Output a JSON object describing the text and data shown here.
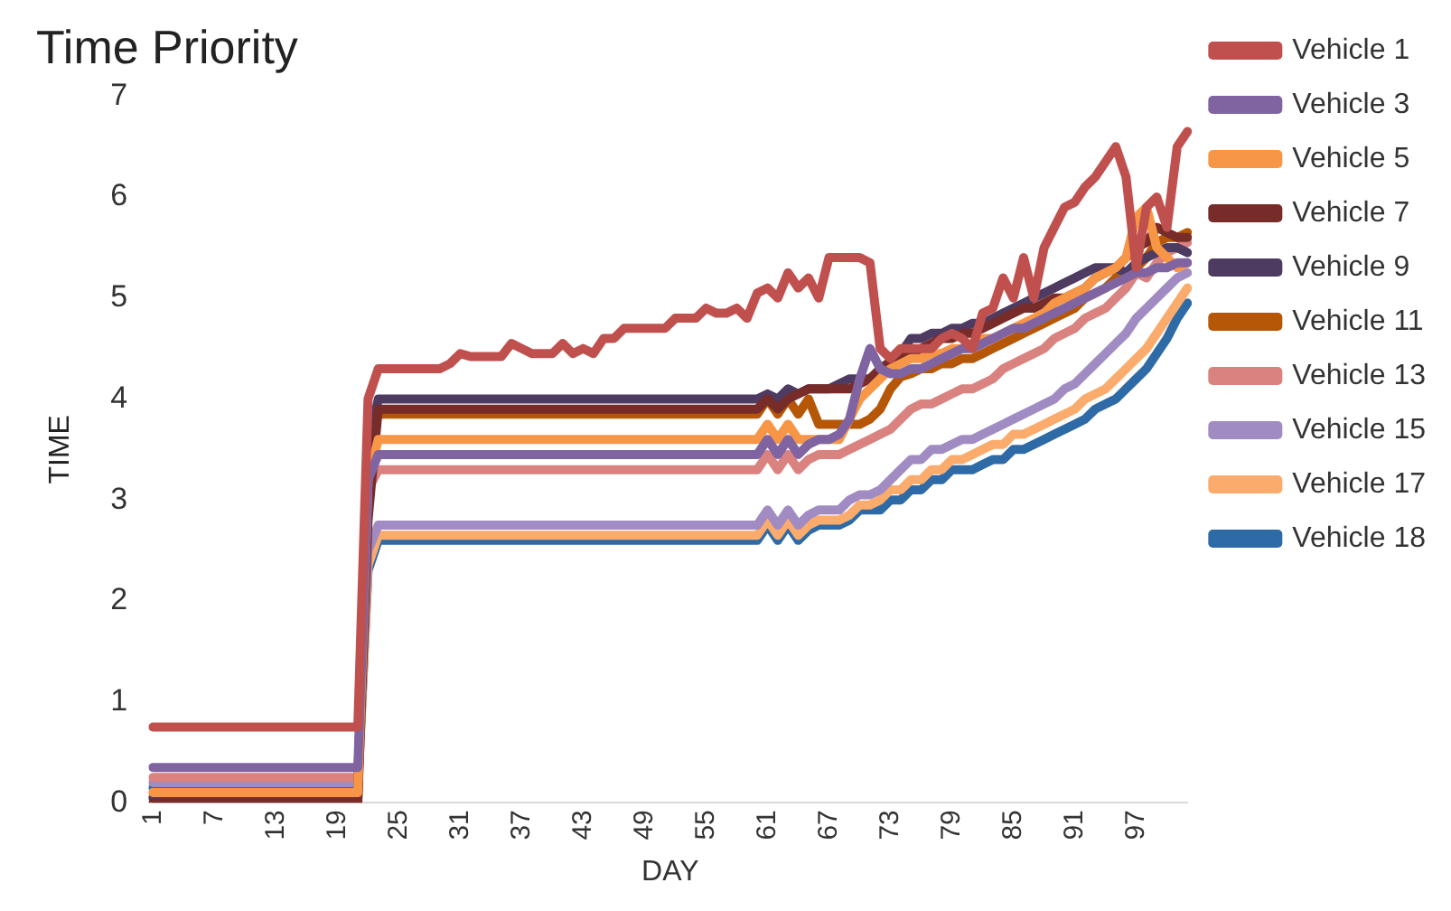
{
  "chart_data": {
    "type": "line",
    "title": "Time Priority",
    "xlabel": "DAY",
    "ylabel": "TIME",
    "ylim": [
      0,
      7
    ],
    "yticks": [
      0,
      1,
      2,
      3,
      4,
      5,
      6,
      7
    ],
    "grid": false,
    "legend": "right",
    "marker": "none",
    "line_style": "solid",
    "categories": [
      "1",
      null,
      null,
      null,
      null,
      null,
      "7",
      null,
      null,
      null,
      null,
      null,
      "13",
      null,
      null,
      null,
      null,
      null,
      "19",
      null,
      null,
      null,
      null,
      null,
      "25",
      null,
      null,
      null,
      null,
      null,
      "31",
      null,
      null,
      null,
      null,
      null,
      "37",
      null,
      null,
      null,
      null,
      null,
      "43",
      null,
      null,
      null,
      null,
      null,
      "49",
      null,
      null,
      null,
      null,
      null,
      "55",
      null,
      null,
      null,
      null,
      null,
      "61",
      null,
      null,
      null,
      null,
      null,
      "67",
      null,
      null,
      null,
      null,
      null,
      "73",
      null,
      null,
      null,
      null,
      null,
      "79",
      null,
      null,
      null,
      null,
      null,
      "85",
      null,
      null,
      null,
      null,
      null,
      "91",
      null,
      null,
      null,
      null,
      null,
      "97",
      null,
      null,
      null,
      null,
      null
    ],
    "series": [
      {
        "name": "Vehicle 1",
        "color": "#c0504d",
        "values": [
          0.75,
          0.75,
          0.75,
          0.75,
          0.75,
          0.75,
          0.75,
          0.75,
          0.75,
          0.75,
          0.75,
          0.75,
          0.75,
          0.75,
          0.75,
          0.75,
          0.75,
          0.75,
          0.75,
          0.75,
          0.75,
          4.0,
          4.3,
          4.3,
          4.3,
          4.3,
          4.3,
          4.3,
          4.3,
          4.35,
          4.45,
          4.42,
          4.42,
          4.42,
          4.42,
          4.55,
          4.5,
          4.45,
          4.45,
          4.45,
          4.55,
          4.45,
          4.5,
          4.45,
          4.6,
          4.6,
          4.7,
          4.7,
          4.7,
          4.7,
          4.7,
          4.8,
          4.8,
          4.8,
          4.9,
          4.85,
          4.85,
          4.9,
          4.8,
          5.05,
          5.1,
          5.0,
          5.25,
          5.1,
          5.2,
          5.0,
          5.4,
          5.4,
          5.4,
          5.4,
          5.35,
          4.5,
          4.4,
          4.5,
          4.5,
          4.5,
          4.5,
          4.6,
          4.65,
          4.6,
          4.5,
          4.85,
          4.9,
          5.2,
          5.0,
          5.4,
          5.0,
          5.5,
          5.7,
          5.9,
          5.95,
          6.1,
          6.2,
          6.35,
          6.5,
          6.2,
          5.3,
          5.9,
          6.0,
          5.7,
          6.5,
          6.65
        ]
      },
      {
        "name": "Vehicle 3",
        "color": "#8064a2",
        "values": [
          0.35,
          0.35,
          0.35,
          0.35,
          0.35,
          0.35,
          0.35,
          0.35,
          0.35,
          0.35,
          0.35,
          0.35,
          0.35,
          0.35,
          0.35,
          0.35,
          0.35,
          0.35,
          0.35,
          0.35,
          0.35,
          3.2,
          3.45,
          3.45,
          3.45,
          3.45,
          3.45,
          3.45,
          3.45,
          3.45,
          3.45,
          3.45,
          3.45,
          3.45,
          3.45,
          3.45,
          3.45,
          3.45,
          3.45,
          3.45,
          3.45,
          3.45,
          3.45,
          3.45,
          3.45,
          3.45,
          3.45,
          3.45,
          3.45,
          3.45,
          3.45,
          3.45,
          3.45,
          3.45,
          3.45,
          3.45,
          3.45,
          3.45,
          3.45,
          3.45,
          3.6,
          3.45,
          3.6,
          3.45,
          3.55,
          3.6,
          3.6,
          3.65,
          3.8,
          4.2,
          4.5,
          4.3,
          4.25,
          4.25,
          4.3,
          4.3,
          4.35,
          4.4,
          4.45,
          4.5,
          4.5,
          4.55,
          4.6,
          4.65,
          4.7,
          4.7,
          4.75,
          4.8,
          4.85,
          4.9,
          4.95,
          5.0,
          5.05,
          5.1,
          5.15,
          5.2,
          5.25,
          5.25,
          5.3,
          5.3,
          5.35,
          5.35
        ]
      },
      {
        "name": "Vehicle 5",
        "color": "#f79646",
        "values": [
          0.1,
          0.1,
          0.1,
          0.1,
          0.1,
          0.1,
          0.1,
          0.1,
          0.1,
          0.1,
          0.1,
          0.1,
          0.1,
          0.1,
          0.1,
          0.1,
          0.1,
          0.1,
          0.1,
          0.1,
          0.1,
          3.2,
          3.6,
          3.6,
          3.6,
          3.6,
          3.6,
          3.6,
          3.6,
          3.6,
          3.6,
          3.6,
          3.6,
          3.6,
          3.6,
          3.6,
          3.6,
          3.6,
          3.6,
          3.6,
          3.6,
          3.6,
          3.6,
          3.6,
          3.6,
          3.6,
          3.6,
          3.6,
          3.6,
          3.6,
          3.6,
          3.6,
          3.6,
          3.6,
          3.6,
          3.6,
          3.6,
          3.6,
          3.6,
          3.6,
          3.75,
          3.6,
          3.75,
          3.6,
          3.6,
          3.6,
          3.6,
          3.6,
          3.8,
          4.0,
          4.1,
          4.2,
          4.3,
          4.35,
          4.4,
          4.4,
          4.45,
          4.45,
          4.5,
          4.5,
          4.55,
          4.6,
          4.6,
          4.65,
          4.7,
          4.75,
          4.8,
          4.85,
          4.95,
          5.0,
          5.05,
          5.1,
          5.2,
          5.25,
          5.3,
          5.4,
          5.8,
          5.9,
          5.5,
          5.4,
          5.3,
          5.35
        ]
      },
      {
        "name": "Vehicle 7",
        "color": "#772c2a",
        "values": [
          0,
          0,
          0,
          0,
          0,
          0,
          0,
          0,
          0,
          0,
          0,
          0,
          0,
          0,
          0,
          0,
          0,
          0,
          0,
          0,
          0,
          2.8,
          3.9,
          3.9,
          3.9,
          3.9,
          3.9,
          3.9,
          3.9,
          3.9,
          3.9,
          3.9,
          3.9,
          3.9,
          3.9,
          3.9,
          3.9,
          3.9,
          3.9,
          3.9,
          3.9,
          3.9,
          3.9,
          3.9,
          3.9,
          3.9,
          3.9,
          3.9,
          3.9,
          3.9,
          3.9,
          3.9,
          3.9,
          3.9,
          3.9,
          3.9,
          3.9,
          3.9,
          3.9,
          3.9,
          4.0,
          3.9,
          4.0,
          4.05,
          4.1,
          4.1,
          4.1,
          4.1,
          4.1,
          4.15,
          4.2,
          4.3,
          4.37,
          4.4,
          4.45,
          4.5,
          4.55,
          4.6,
          4.6,
          4.65,
          4.65,
          4.7,
          4.75,
          4.8,
          4.85,
          4.9,
          4.9,
          4.95,
          5.0,
          5.0,
          5.05,
          5.1,
          5.2,
          5.25,
          5.3,
          5.4,
          5.5,
          5.55,
          5.7,
          5.65,
          5.6,
          5.6
        ]
      },
      {
        "name": "Vehicle 9",
        "color": "#4d3b62",
        "values": [
          0.05,
          0.05,
          0.05,
          0.05,
          0.05,
          0.05,
          0.05,
          0.05,
          0.05,
          0.05,
          0.05,
          0.05,
          0.05,
          0.05,
          0.05,
          0.05,
          0.05,
          0.05,
          0.05,
          0.05,
          0.05,
          3.5,
          4.0,
          4.0,
          4.0,
          4.0,
          4.0,
          4.0,
          4.0,
          4.0,
          4.0,
          4.0,
          4.0,
          4.0,
          4.0,
          4.0,
          4.0,
          4.0,
          4.0,
          4.0,
          4.0,
          4.0,
          4.0,
          4.0,
          4.0,
          4.0,
          4.0,
          4.0,
          4.0,
          4.0,
          4.0,
          4.0,
          4.0,
          4.0,
          4.0,
          4.0,
          4.0,
          4.0,
          4.0,
          4.0,
          4.05,
          4.0,
          4.1,
          4.05,
          4.1,
          4.1,
          4.1,
          4.15,
          4.2,
          4.2,
          4.2,
          4.25,
          4.3,
          4.45,
          4.6,
          4.6,
          4.65,
          4.65,
          4.7,
          4.7,
          4.75,
          4.75,
          4.8,
          4.85,
          4.9,
          4.95,
          5.0,
          5.05,
          5.1,
          5.15,
          5.2,
          5.25,
          5.3,
          5.3,
          5.3,
          5.25,
          5.35,
          5.4,
          5.45,
          5.5,
          5.5,
          5.45
        ]
      },
      {
        "name": "Vehicle 11",
        "color": "#b65708",
        "values": [
          0.05,
          0.05,
          0.05,
          0.05,
          0.05,
          0.05,
          0.05,
          0.05,
          0.05,
          0.05,
          0.05,
          0.05,
          0.05,
          0.05,
          0.05,
          0.05,
          0.05,
          0.05,
          0.05,
          0.05,
          0.05,
          3.7,
          3.85,
          3.85,
          3.85,
          3.85,
          3.85,
          3.85,
          3.85,
          3.85,
          3.85,
          3.85,
          3.85,
          3.85,
          3.85,
          3.85,
          3.85,
          3.85,
          3.85,
          3.85,
          3.85,
          3.85,
          3.85,
          3.85,
          3.85,
          3.85,
          3.85,
          3.85,
          3.85,
          3.85,
          3.85,
          3.85,
          3.85,
          3.85,
          3.85,
          3.85,
          3.85,
          3.85,
          3.85,
          3.85,
          4.0,
          3.85,
          4.0,
          3.85,
          4.0,
          3.75,
          3.75,
          3.75,
          3.75,
          3.75,
          3.8,
          3.9,
          4.1,
          4.22,
          4.25,
          4.3,
          4.3,
          4.35,
          4.35,
          4.4,
          4.4,
          4.45,
          4.5,
          4.55,
          4.6,
          4.65,
          4.7,
          4.75,
          4.8,
          4.85,
          4.9,
          5.0,
          5.05,
          5.1,
          5.2,
          5.25,
          5.3,
          5.4,
          5.55,
          5.6,
          5.6,
          5.65
        ]
      },
      {
        "name": "Vehicle 13",
        "color": "#d9827f",
        "values": [
          0.25,
          0.25,
          0.25,
          0.25,
          0.25,
          0.25,
          0.25,
          0.25,
          0.25,
          0.25,
          0.25,
          0.25,
          0.25,
          0.25,
          0.25,
          0.25,
          0.25,
          0.25,
          0.25,
          0.25,
          0.25,
          3.1,
          3.3,
          3.3,
          3.3,
          3.3,
          3.3,
          3.3,
          3.3,
          3.3,
          3.3,
          3.3,
          3.3,
          3.3,
          3.3,
          3.3,
          3.3,
          3.3,
          3.3,
          3.3,
          3.3,
          3.3,
          3.3,
          3.3,
          3.3,
          3.3,
          3.3,
          3.3,
          3.3,
          3.3,
          3.3,
          3.3,
          3.3,
          3.3,
          3.3,
          3.3,
          3.3,
          3.3,
          3.3,
          3.3,
          3.45,
          3.3,
          3.45,
          3.3,
          3.4,
          3.45,
          3.45,
          3.45,
          3.5,
          3.55,
          3.6,
          3.65,
          3.7,
          3.8,
          3.9,
          3.95,
          3.95,
          4.0,
          4.05,
          4.1,
          4.1,
          4.15,
          4.2,
          4.3,
          4.35,
          4.4,
          4.45,
          4.5,
          4.6,
          4.65,
          4.7,
          4.8,
          4.85,
          4.9,
          5.0,
          5.1,
          5.25,
          5.2,
          5.35,
          5.45,
          5.5,
          5.55
        ]
      },
      {
        "name": "Vehicle 15",
        "color": "#a08cc2",
        "values": [
          0.2,
          0.2,
          0.2,
          0.2,
          0.2,
          0.2,
          0.2,
          0.2,
          0.2,
          0.2,
          0.2,
          0.2,
          0.2,
          0.2,
          0.2,
          0.2,
          0.2,
          0.2,
          0.2,
          0.2,
          0.2,
          2.5,
          2.75,
          2.75,
          2.75,
          2.75,
          2.75,
          2.75,
          2.75,
          2.75,
          2.75,
          2.75,
          2.75,
          2.75,
          2.75,
          2.75,
          2.75,
          2.75,
          2.75,
          2.75,
          2.75,
          2.75,
          2.75,
          2.75,
          2.75,
          2.75,
          2.75,
          2.75,
          2.75,
          2.75,
          2.75,
          2.75,
          2.75,
          2.75,
          2.75,
          2.75,
          2.75,
          2.75,
          2.75,
          2.75,
          2.9,
          2.75,
          2.9,
          2.75,
          2.85,
          2.9,
          2.9,
          2.9,
          3.0,
          3.05,
          3.05,
          3.1,
          3.2,
          3.3,
          3.4,
          3.4,
          3.5,
          3.5,
          3.55,
          3.6,
          3.6,
          3.65,
          3.7,
          3.75,
          3.8,
          3.85,
          3.9,
          3.95,
          4.0,
          4.1,
          4.15,
          4.25,
          4.35,
          4.45,
          4.55,
          4.65,
          4.8,
          4.9,
          5.0,
          5.1,
          5.2,
          5.25
        ]
      },
      {
        "name": "Vehicle 17",
        "color": "#fbab6b",
        "values": [
          0.1,
          0.1,
          0.1,
          0.1,
          0.1,
          0.1,
          0.1,
          0.1,
          0.1,
          0.1,
          0.1,
          0.1,
          0.1,
          0.1,
          0.1,
          0.1,
          0.1,
          0.1,
          0.1,
          0.1,
          0.1,
          2.35,
          2.65,
          2.65,
          2.65,
          2.65,
          2.65,
          2.65,
          2.65,
          2.65,
          2.65,
          2.65,
          2.65,
          2.65,
          2.65,
          2.65,
          2.65,
          2.65,
          2.65,
          2.65,
          2.65,
          2.65,
          2.65,
          2.65,
          2.65,
          2.65,
          2.65,
          2.65,
          2.65,
          2.65,
          2.65,
          2.65,
          2.65,
          2.65,
          2.65,
          2.65,
          2.65,
          2.65,
          2.65,
          2.65,
          2.8,
          2.65,
          2.8,
          2.65,
          2.75,
          2.8,
          2.8,
          2.8,
          2.85,
          2.95,
          2.95,
          3.0,
          3.1,
          3.1,
          3.2,
          3.2,
          3.3,
          3.3,
          3.4,
          3.4,
          3.45,
          3.5,
          3.55,
          3.55,
          3.65,
          3.65,
          3.7,
          3.75,
          3.8,
          3.85,
          3.9,
          4.0,
          4.05,
          4.1,
          4.2,
          4.3,
          4.4,
          4.5,
          4.65,
          4.8,
          4.95,
          5.1
        ]
      },
      {
        "name": "Vehicle 18",
        "color": "#2e6aa6",
        "values": [
          0.15,
          0.15,
          0.15,
          0.15,
          0.15,
          0.15,
          0.15,
          0.15,
          0.15,
          0.15,
          0.15,
          0.15,
          0.15,
          0.15,
          0.15,
          0.15,
          0.15,
          0.15,
          0.15,
          0.15,
          0.15,
          2.3,
          2.6,
          2.6,
          2.6,
          2.6,
          2.6,
          2.6,
          2.6,
          2.6,
          2.6,
          2.6,
          2.6,
          2.6,
          2.6,
          2.6,
          2.6,
          2.6,
          2.6,
          2.6,
          2.6,
          2.6,
          2.6,
          2.6,
          2.6,
          2.6,
          2.6,
          2.6,
          2.6,
          2.6,
          2.6,
          2.6,
          2.6,
          2.6,
          2.6,
          2.6,
          2.6,
          2.6,
          2.6,
          2.6,
          2.75,
          2.6,
          2.75,
          2.6,
          2.7,
          2.75,
          2.75,
          2.75,
          2.8,
          2.9,
          2.9,
          2.9,
          3.0,
          3.0,
          3.1,
          3.1,
          3.2,
          3.2,
          3.3,
          3.3,
          3.3,
          3.35,
          3.4,
          3.4,
          3.5,
          3.5,
          3.55,
          3.6,
          3.65,
          3.7,
          3.75,
          3.8,
          3.9,
          3.95,
          4.0,
          4.1,
          4.2,
          4.3,
          4.45,
          4.6,
          4.8,
          4.95
        ]
      }
    ]
  }
}
